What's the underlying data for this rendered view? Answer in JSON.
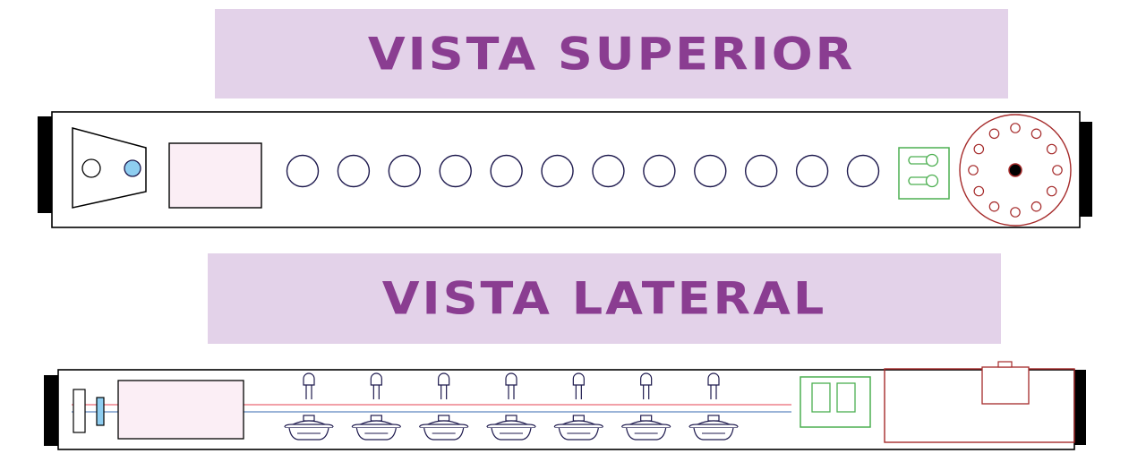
{
  "titles": {
    "top_view": "VISTA SUPERIOR",
    "side_view": "VISTA LATERAL"
  },
  "colors": {
    "banner_bg": "#e3d2e9",
    "banner_text": "#8a3d91",
    "outline": "#000000",
    "socket_stroke": "#1e1a4e",
    "led_fill": "#8ecdf0",
    "display_fill": "#fbeef5",
    "switch_green": "#4caf50",
    "dial_red": "#a52a2a",
    "wire_red": "#f2a0a8",
    "wire_blue": "#9bb4d8"
  },
  "top_view": {
    "socket_count": 12,
    "dial_hole_count": 12,
    "switch_toggle_count": 2
  },
  "side_view": {
    "tube_count": 7,
    "switch_window_count": 2
  }
}
